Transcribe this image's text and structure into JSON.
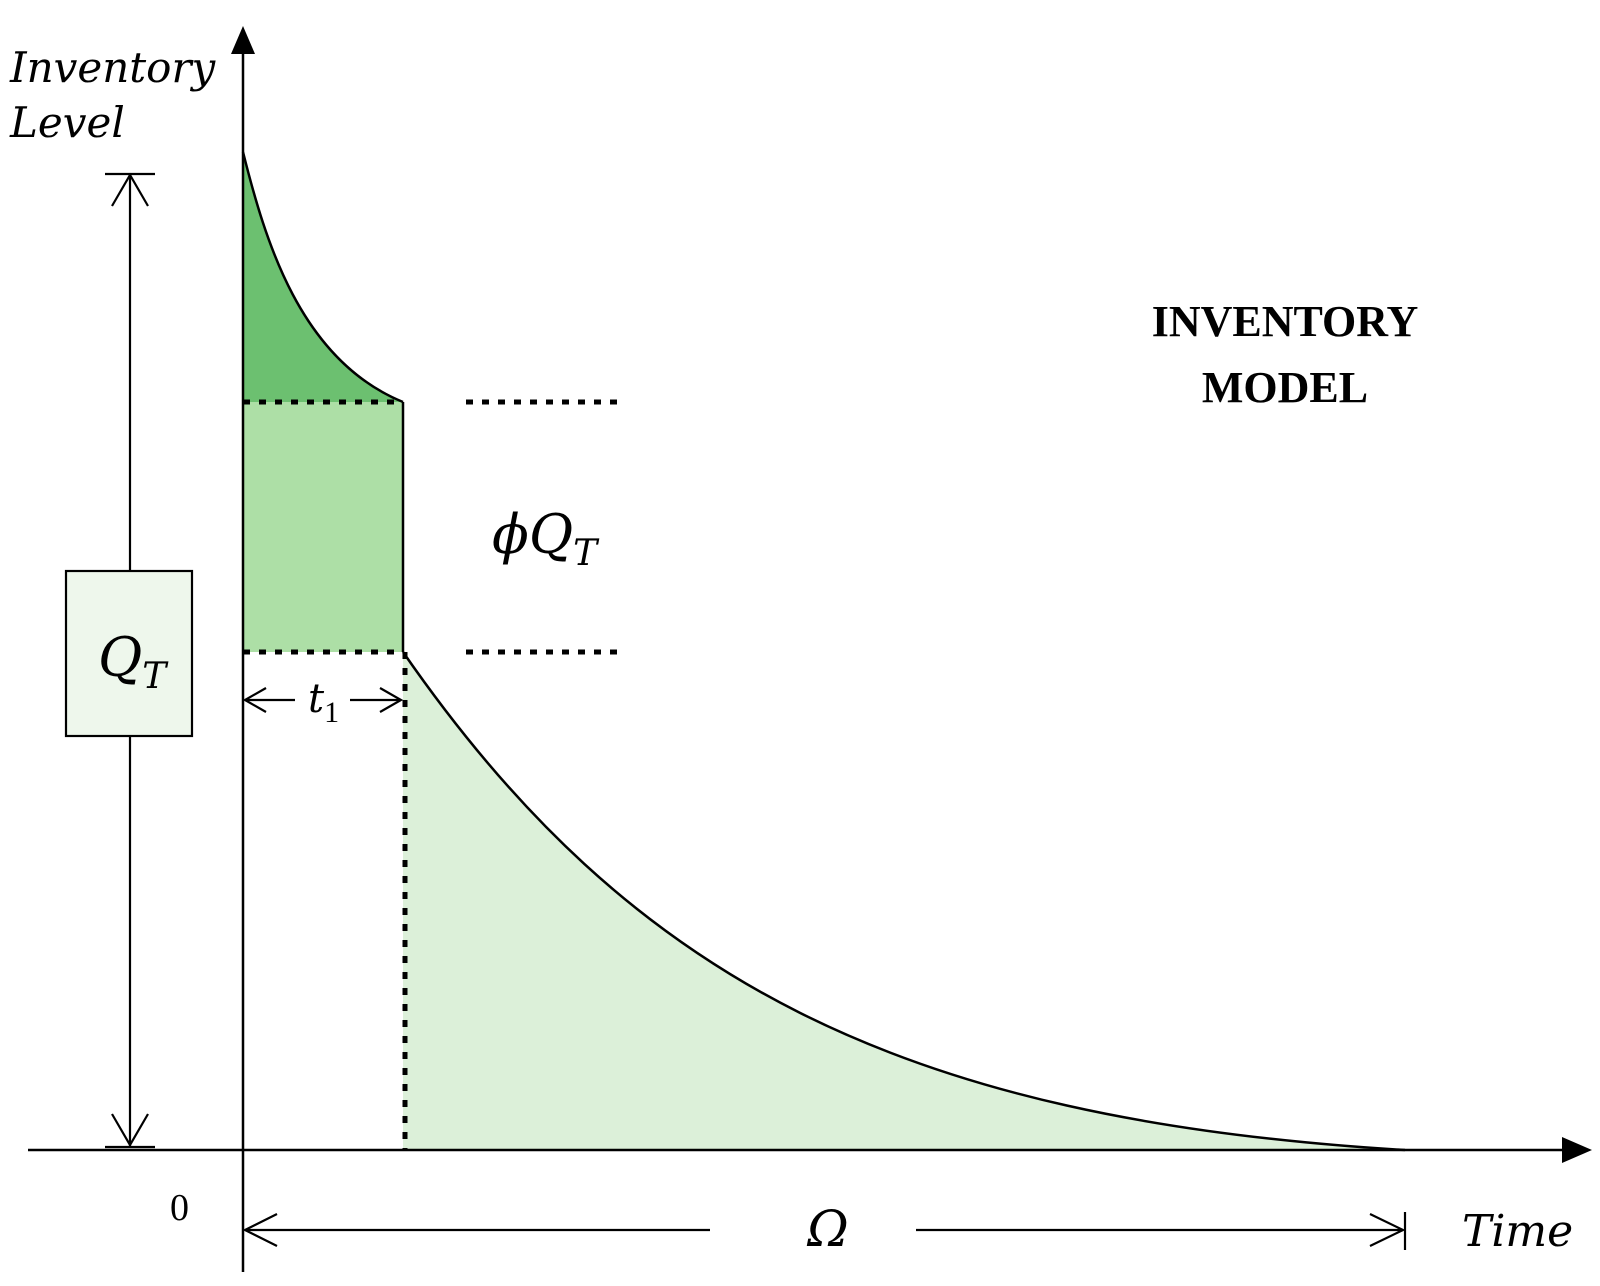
{
  "colors": {
    "dark_green": "#6cc070",
    "mid_green": "#addfa6",
    "light_green": "#dcf0d9",
    "box_fill": "#eef7ec",
    "line": "#000000"
  },
  "labels": {
    "y_axis_line1": "Inventory",
    "y_axis_line2": "Level",
    "x_axis": "Time",
    "origin": "0",
    "title_line1": "INVENTORY",
    "title_line2": "MODEL",
    "phi_symbol": "ϕ",
    "q_symbol": "Q",
    "sub_t": "T",
    "t_symbol": "t",
    "sub_1": "1",
    "omega": "Ω"
  }
}
